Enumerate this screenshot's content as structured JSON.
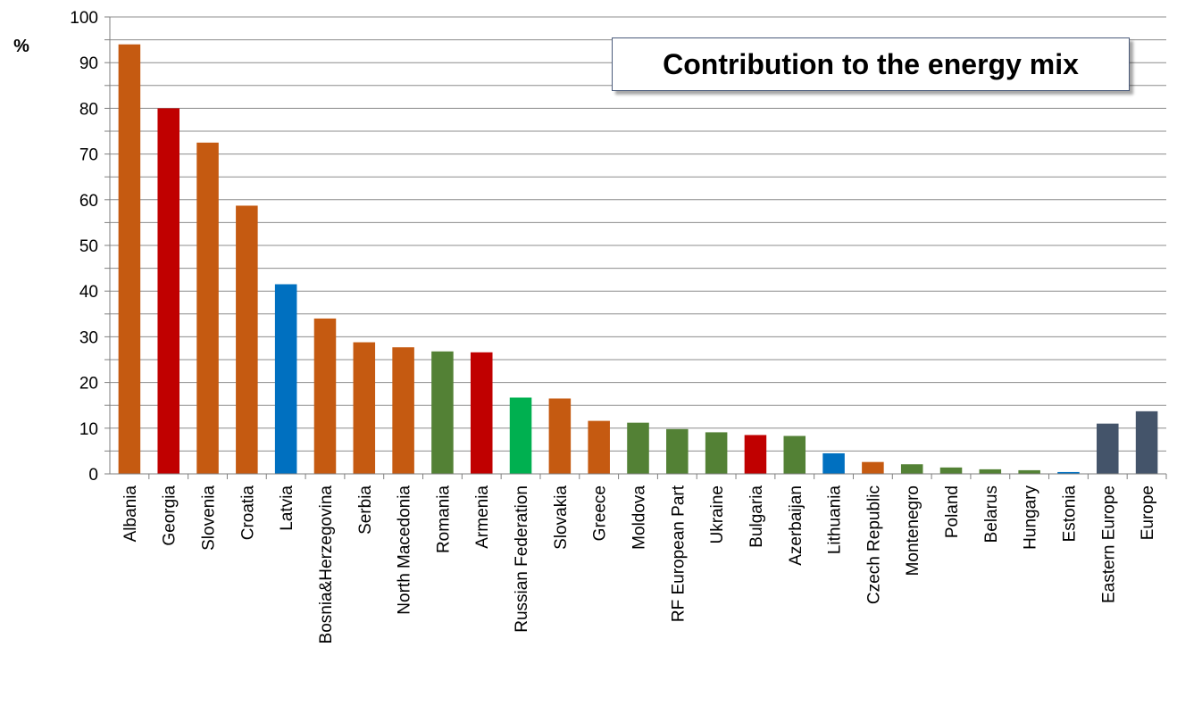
{
  "chart_data": {
    "type": "bar",
    "title": "Contribution to the energy mix",
    "ylabel": "%",
    "xlabel": "",
    "ylim": [
      0,
      100
    ],
    "yticks": [
      "0",
      "10",
      "20",
      "30",
      "40",
      "50",
      "60",
      "70",
      "80",
      "90",
      "100"
    ],
    "grid": true,
    "categories": [
      "Albania",
      "Georgia",
      "Slovenia",
      "Croatia",
      "Latvia",
      "Bosnia&Herzegovina",
      "Serbia",
      "North Macedonia",
      "Romania",
      "Armenia",
      "Russian Federation",
      "Slovakia",
      "Greece",
      "Moldova",
      "RF European Part",
      "Ukraine",
      "Bulgaria",
      "Azerbaijan",
      "Lithuania",
      "Czech Republic",
      "Montenegro",
      "Poland",
      "Belarus",
      "Hungary",
      "Estonia",
      "Eastern Europe",
      "Europe"
    ],
    "values": [
      94,
      80,
      72.5,
      58.7,
      41.5,
      34,
      28.8,
      27.7,
      26.8,
      26.6,
      16.7,
      16.5,
      11.6,
      11.2,
      9.8,
      9.1,
      8.5,
      8.3,
      4.5,
      2.6,
      2.1,
      1.4,
      1.0,
      0.8,
      0.4,
      11.0,
      13.7
    ],
    "colors": [
      "#c55a11",
      "#c00000",
      "#c55a11",
      "#c55a11",
      "#0070c0",
      "#c55a11",
      "#c55a11",
      "#c55a11",
      "#538135",
      "#c00000",
      "#00b050",
      "#c55a11",
      "#c55a11",
      "#538135",
      "#538135",
      "#538135",
      "#c00000",
      "#538135",
      "#0070c0",
      "#c55a11",
      "#538135",
      "#538135",
      "#538135",
      "#538135",
      "#0070c0",
      "#44546a",
      "#44546a"
    ]
  }
}
